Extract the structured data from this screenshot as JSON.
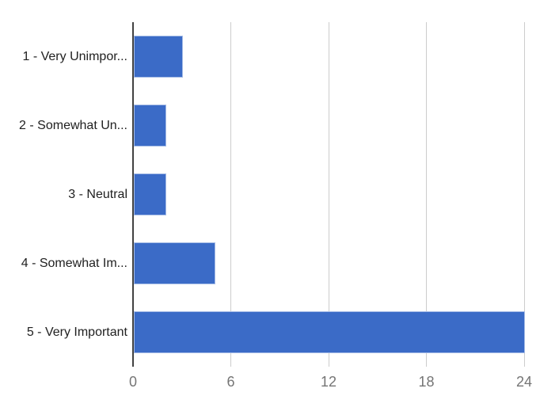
{
  "chart_data": {
    "type": "bar",
    "orientation": "horizontal",
    "title": "",
    "categories": [
      "1 - Very Unimpor...",
      "2 - Somewhat Un...",
      "3 - Neutral",
      "4 - Somewhat Im...",
      "5 - Very Important"
    ],
    "values": [
      3,
      2,
      2,
      5,
      24
    ],
    "xlabel": "",
    "ylabel": "",
    "xlim": [
      0,
      24
    ],
    "x_ticks": [
      0,
      6,
      12,
      18,
      24
    ],
    "grid": "vertical",
    "legend": "none",
    "colors": {
      "bar": "#3b6bc7",
      "axis_line": "#424242",
      "gridline": "#cccccc",
      "tick_label": "#757575",
      "category_label": "#212121",
      "background": "#ffffff"
    }
  }
}
